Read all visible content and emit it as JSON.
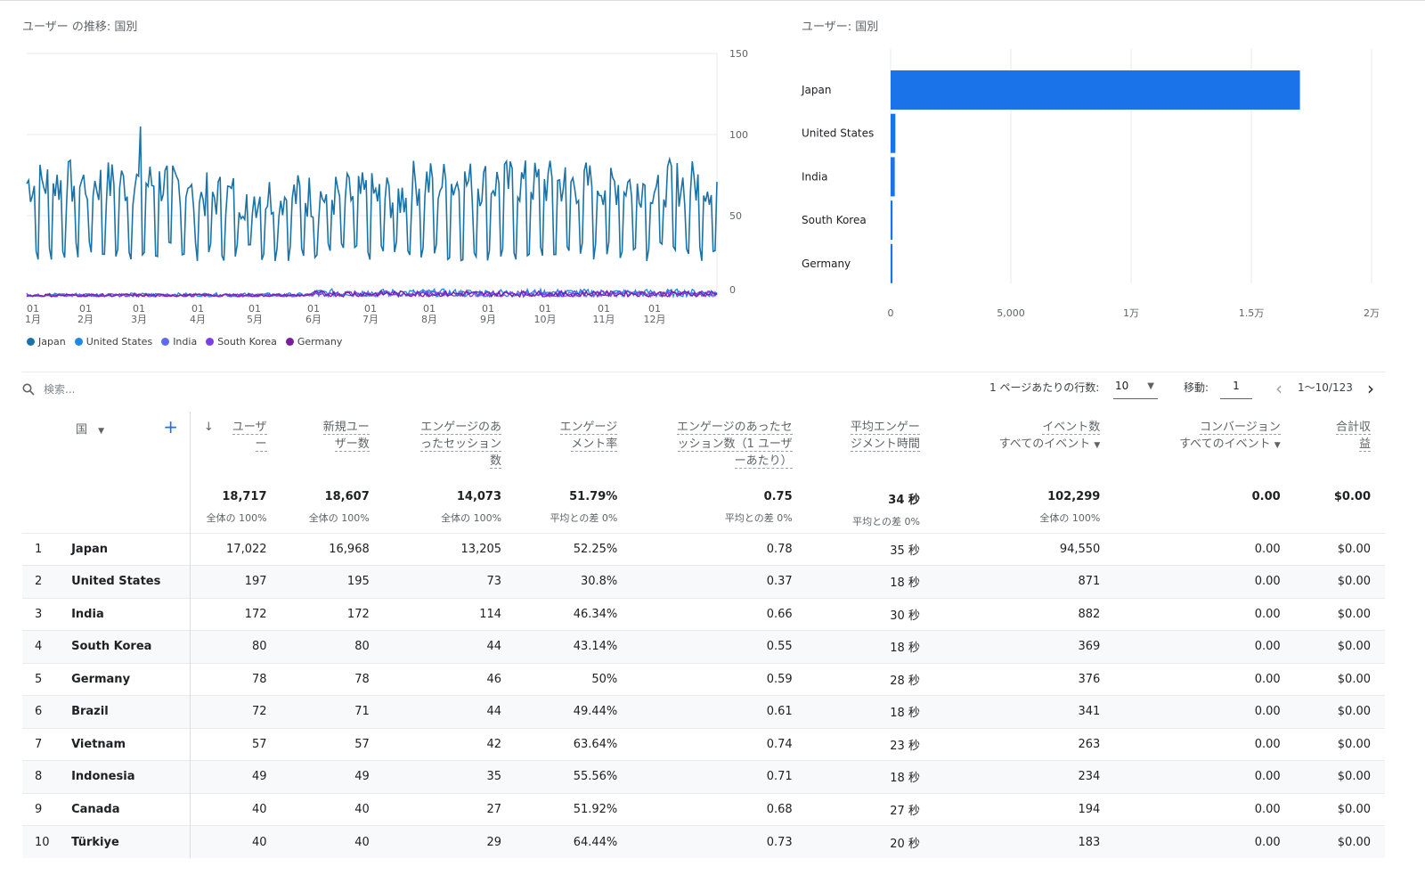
{
  "line_chart": {
    "title": "ユーザー の推移: 国別",
    "y_ticks": [
      "150",
      "100",
      "50",
      "0"
    ],
    "x_ticks": [
      [
        "01",
        "1月"
      ],
      [
        "01",
        "2月"
      ],
      [
        "01",
        "3月"
      ],
      [
        "01",
        "4月"
      ],
      [
        "01",
        "5月"
      ],
      [
        "01",
        "6月"
      ],
      [
        "01",
        "7月"
      ],
      [
        "01",
        "8月"
      ],
      [
        "01",
        "9月"
      ],
      [
        "01",
        "10月"
      ],
      [
        "01",
        "11月"
      ],
      [
        "01",
        "12月"
      ]
    ],
    "legend": [
      {
        "name": "Japan",
        "color": "#1a73a8"
      },
      {
        "name": "United States",
        "color": "#1e88e5"
      },
      {
        "name": "India",
        "color": "#5c6bf0"
      },
      {
        "name": "South Korea",
        "color": "#7b3fe4"
      },
      {
        "name": "Germany",
        "color": "#7b1fa2"
      }
    ]
  },
  "bar_chart": {
    "title": "ユーザー: 国別",
    "x_ticks": [
      "0",
      "5,000",
      "1万",
      "1.5万",
      "2万"
    ],
    "color": "#1a73e8"
  },
  "chart_data": [
    {
      "type": "line",
      "title": "ユーザー の推移: 国別",
      "xlabel": "",
      "ylabel": "",
      "ylim": [
        0,
        150
      ],
      "x_range": [
        "1月",
        "12月"
      ],
      "series": [
        {
          "name": "Japan",
          "values_summary": "daily values oscillating roughly between 20 and 90, peak ~105 in early March"
        },
        {
          "name": "United States",
          "values_summary": "daily values 0-5"
        },
        {
          "name": "India",
          "values_summary": "daily values 0-5"
        },
        {
          "name": "South Korea",
          "values_summary": "daily values 0-4"
        },
        {
          "name": "Germany",
          "values_summary": "daily values 0-4"
        }
      ]
    },
    {
      "type": "bar",
      "title": "ユーザー: 国別",
      "orientation": "horizontal",
      "categories": [
        "Japan",
        "United States",
        "India",
        "South Korea",
        "Germany"
      ],
      "values": [
        17022,
        197,
        172,
        80,
        78
      ],
      "xlim": [
        0,
        20000
      ]
    }
  ],
  "toolbar": {
    "search_placeholder": "検索...",
    "rows_label": "1 ページあたりの行数:",
    "rows_value": "10",
    "goto_label": "移動:",
    "goto_value": "1",
    "range": "1〜10/123"
  },
  "table": {
    "dimension_header": "国",
    "headers": [
      [
        "ユーザ",
        "ー"
      ],
      [
        "新規ユー",
        "ザー数"
      ],
      [
        "エンゲージのあ",
        "ったセッション",
        "数"
      ],
      [
        "エンゲージ",
        "メント率"
      ],
      [
        "エンゲージのあったセ",
        "ッション数（1 ユーザ",
        "ーあたり）"
      ],
      [
        "平均エンゲー",
        "ジメント時間"
      ],
      [
        "イベント数",
        "すべてのイベント"
      ],
      [
        "コンバージョン",
        "すべてのイベント"
      ],
      [
        "合計収",
        "益"
      ]
    ],
    "totals": [
      {
        "value": "18,717",
        "sub": "全体の 100%"
      },
      {
        "value": "18,607",
        "sub": "全体の 100%"
      },
      {
        "value": "14,073",
        "sub": "全体の 100%"
      },
      {
        "value": "51.79%",
        "sub": "平均との差 0%"
      },
      {
        "value": "0.75",
        "sub": "平均との差 0%"
      },
      {
        "value": "34 秒",
        "sub": "平均との差 0%"
      },
      {
        "value": "102,299",
        "sub": "全体の 100%"
      },
      {
        "value": "0.00",
        "sub": ""
      },
      {
        "value": "$0.00",
        "sub": ""
      }
    ],
    "rows": [
      [
        "1",
        "Japan",
        "17,022",
        "16,968",
        "13,205",
        "52.25%",
        "0.78",
        "35 秒",
        "94,550",
        "0.00",
        "$0.00"
      ],
      [
        "2",
        "United States",
        "197",
        "195",
        "73",
        "30.8%",
        "0.37",
        "18 秒",
        "871",
        "0.00",
        "$0.00"
      ],
      [
        "3",
        "India",
        "172",
        "172",
        "114",
        "46.34%",
        "0.66",
        "30 秒",
        "882",
        "0.00",
        "$0.00"
      ],
      [
        "4",
        "South Korea",
        "80",
        "80",
        "44",
        "43.14%",
        "0.55",
        "18 秒",
        "369",
        "0.00",
        "$0.00"
      ],
      [
        "5",
        "Germany",
        "78",
        "78",
        "46",
        "50%",
        "0.59",
        "28 秒",
        "376",
        "0.00",
        "$0.00"
      ],
      [
        "6",
        "Brazil",
        "72",
        "71",
        "44",
        "49.44%",
        "0.61",
        "18 秒",
        "341",
        "0.00",
        "$0.00"
      ],
      [
        "7",
        "Vietnam",
        "57",
        "57",
        "42",
        "63.64%",
        "0.74",
        "23 秒",
        "263",
        "0.00",
        "$0.00"
      ],
      [
        "8",
        "Indonesia",
        "49",
        "49",
        "35",
        "55.56%",
        "0.71",
        "18 秒",
        "234",
        "0.00",
        "$0.00"
      ],
      [
        "9",
        "Canada",
        "40",
        "40",
        "27",
        "51.92%",
        "0.68",
        "27 秒",
        "194",
        "0.00",
        "$0.00"
      ],
      [
        "10",
        "Türkiye",
        "40",
        "40",
        "29",
        "64.44%",
        "0.73",
        "20 秒",
        "183",
        "0.00",
        "$0.00"
      ]
    ]
  }
}
